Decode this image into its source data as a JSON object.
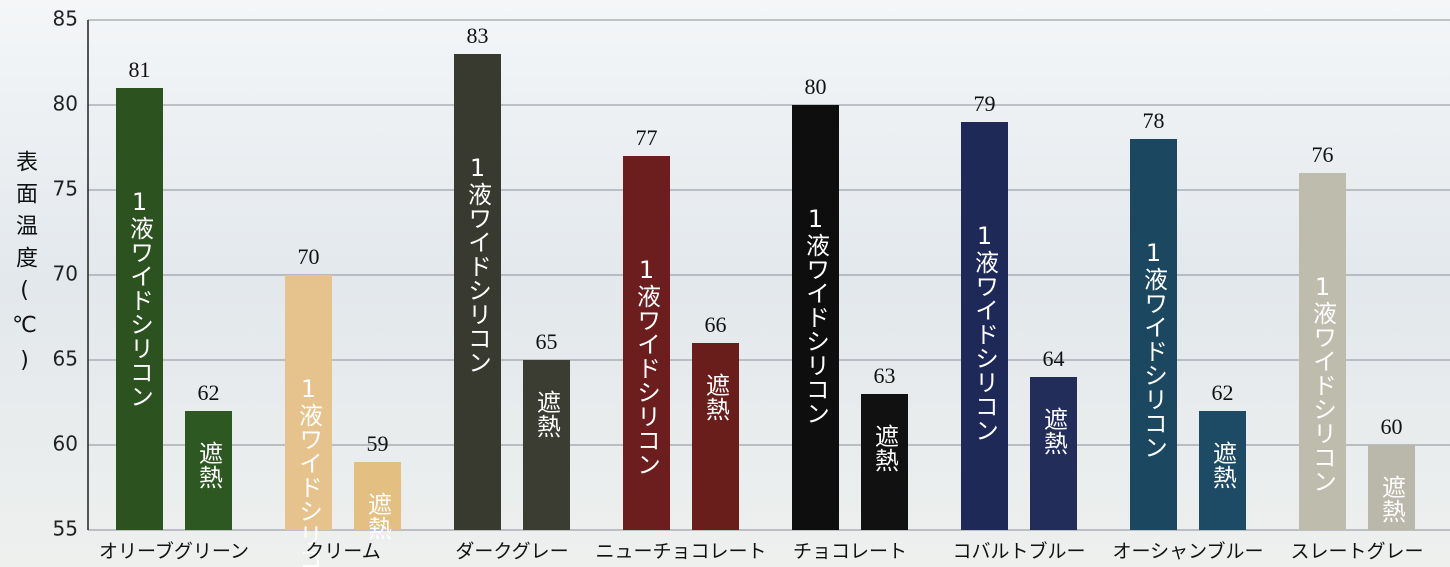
{
  "chart_data": {
    "type": "bar",
    "y_label": "表面温度(℃)",
    "categories": [
      "オリーブグリーン",
      "クリーム",
      "ダークグレー",
      "ニューチョコレート",
      "チョコレート",
      "コバルトブルー",
      "オーシャンブルー",
      "スレートグレー"
    ],
    "series": [
      {
        "name": "1液ワイドシリコン",
        "values": [
          81,
          70,
          83,
          77,
          80,
          79,
          78,
          76
        ],
        "colors": [
          "#2c5220",
          "#e6c28c",
          "#393a2f",
          "#6c1d1d",
          "#0e0e0e",
          "#1f2958",
          "#1b4860",
          "#bdbcad"
        ]
      },
      {
        "name": "遮熱",
        "values": [
          62,
          59,
          65,
          66,
          63,
          64,
          62,
          60
        ],
        "colors": [
          "#2e5822",
          "#e4bf82",
          "#3b3c32",
          "#6a1e1c",
          "#111111",
          "#222d5a",
          "#1d4b65",
          "#b9b8aa"
        ]
      }
    ],
    "ylim": [
      55,
      85
    ],
    "yticks": [
      55,
      60,
      65,
      70,
      75,
      80,
      85
    ],
    "grid": true
  }
}
